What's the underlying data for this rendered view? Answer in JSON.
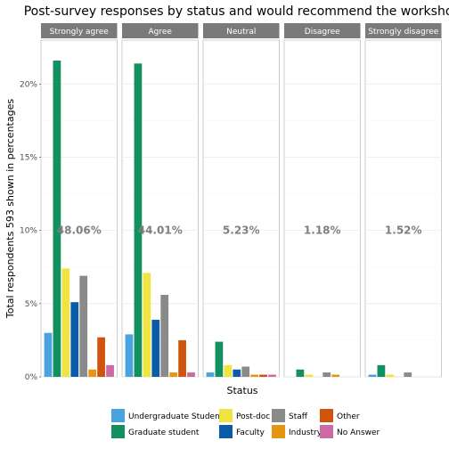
{
  "chart_data": {
    "type": "bar",
    "title": "Post-survey responses by status and would recommend the workshop",
    "xlabel": "Status",
    "ylabel": "Total respondents 593 shown in percentages",
    "ylim": [
      0,
      23
    ],
    "yticks": [
      0,
      5,
      10,
      15,
      20
    ],
    "ytick_labels": [
      "0%",
      "5%",
      "10%",
      "15%",
      "20%"
    ],
    "grid": true,
    "legend_position": "bottom",
    "series": [
      {
        "name": "Undergraduate Student",
        "color": "#4aa3df"
      },
      {
        "name": "Graduate student",
        "color": "#13905f"
      },
      {
        "name": "Post-doc",
        "color": "#f0e442"
      },
      {
        "name": "Faculty",
        "color": "#0a5ba8"
      },
      {
        "name": "Staff",
        "color": "#8a8a8a"
      },
      {
        "name": "Industry",
        "color": "#e69512"
      },
      {
        "name": "Other",
        "color": "#d1540e"
      },
      {
        "name": "No Answer",
        "color": "#cc6aa3"
      }
    ],
    "facets": [
      {
        "name": "Strongly agree",
        "total_label": "48.06%",
        "values": [
          3.0,
          21.6,
          7.4,
          5.1,
          6.9,
          0.5,
          2.7,
          0.8
        ]
      },
      {
        "name": "Agree",
        "total_label": "44.01%",
        "values": [
          2.9,
          21.4,
          7.1,
          3.9,
          5.6,
          0.3,
          2.5,
          0.3
        ]
      },
      {
        "name": "Neutral",
        "total_label": "5.23%",
        "values": [
          0.3,
          2.4,
          0.8,
          0.5,
          0.7,
          0.15,
          0.15,
          0.15
        ]
      },
      {
        "name": "Disagree",
        "total_label": "1.18%",
        "values": [
          0,
          0.5,
          0.15,
          0,
          0.3,
          0.15,
          0,
          0
        ]
      },
      {
        "name": "Strongly disagree",
        "total_label": "1.52%",
        "values": [
          0.15,
          0.8,
          0.15,
          0,
          0.3,
          0,
          0,
          0
        ]
      }
    ]
  }
}
